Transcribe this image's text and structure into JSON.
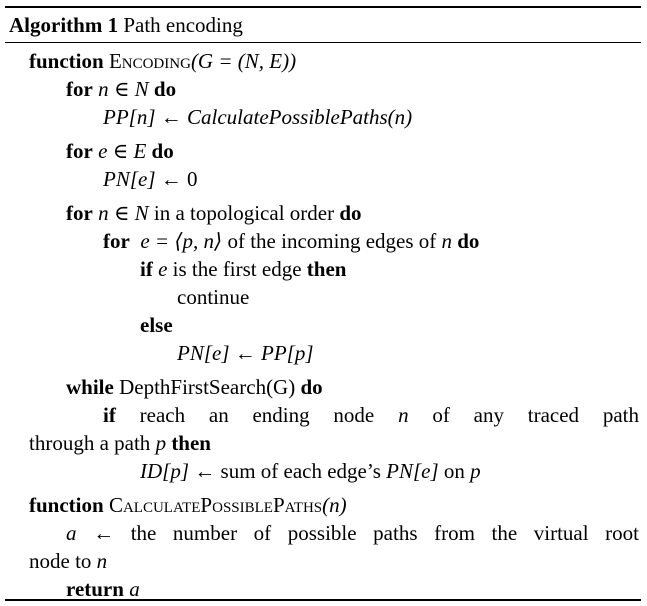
{
  "algorithm": {
    "label": "Algorithm 1",
    "title": "Path encoding"
  },
  "lines": {
    "l1": {
      "kw": "function",
      "name": "Encoding",
      "args": "(G = (N, E))"
    },
    "l2": {
      "kw1": "for",
      "expr": "n ∈ N",
      "kw2": "do"
    },
    "l3": {
      "lhs": "PP[n]",
      "arrow": "←",
      "rhs": "CalculatePossiblePaths(n)"
    },
    "l4": {
      "kw1": "for",
      "expr": "e ∈ E",
      "kw2": "do"
    },
    "l5": {
      "lhs": "PN[e]",
      "arrow": "←",
      "rhs": "0"
    },
    "l6": {
      "kw1": "for",
      "expr": "n ∈ N",
      "text": "in a topological order",
      "kw2": "do"
    },
    "l7": {
      "kw1": "for",
      "expr": "e = ⟨p, n⟩",
      "text1": "of the incoming edges of",
      "var": "n",
      "kw2": "do"
    },
    "l8": {
      "kw1": "if",
      "var": "e",
      "text": "is the first edge",
      "kw2": "then"
    },
    "l9": {
      "text": "continue"
    },
    "l10": {
      "kw": "else"
    },
    "l11": {
      "lhs": "PN[e]",
      "arrow": "←",
      "rhs": "PP[p]"
    },
    "l12": {
      "kw1": "while",
      "text": "DepthFirstSearch(G)",
      "kw2": "do"
    },
    "l13": {
      "kw": "if",
      "text1": "reach an ending node",
      "var": "n",
      "text2": "of any traced path"
    },
    "l14": {
      "text": "through a path",
      "var": "p",
      "kw": "then"
    },
    "l15": {
      "lhs": "ID[p]",
      "arrow": "←",
      "text": "sum of each edge’s",
      "mid": "PN[e]",
      "text2": "on",
      "var": "p"
    },
    "l16": {
      "kw": "function",
      "name": "CalculatePossiblePaths",
      "args": "(n)"
    },
    "l17": {
      "var": "a",
      "arrow": "←",
      "text": "the number of possible paths from the virtual root"
    },
    "l18": {
      "text": "node to",
      "var": "n"
    },
    "l19": {
      "kw": "return",
      "var": "a"
    }
  }
}
